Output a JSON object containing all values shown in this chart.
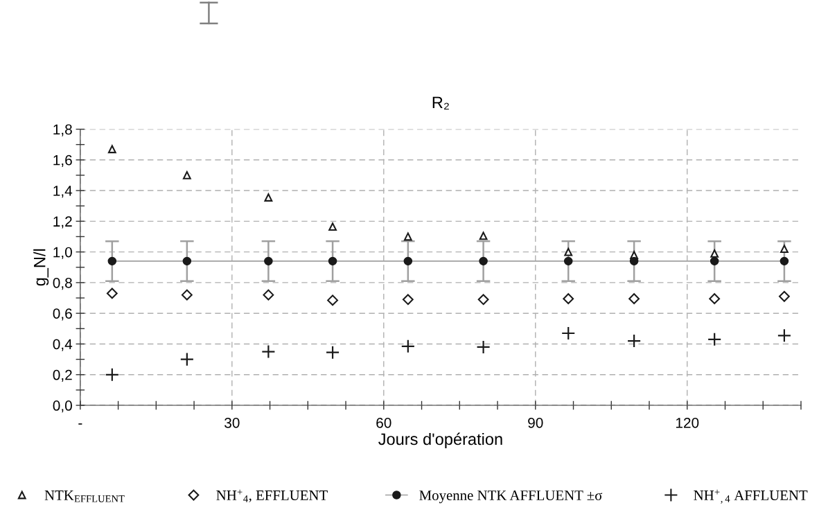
{
  "chart_data": {
    "type": "scatter",
    "title": "R₂",
    "xlabel": "Jours d'opération",
    "ylabel": "g_N/l",
    "x": [
      6.3,
      21.1,
      37.2,
      49.9,
      64.8,
      79.7,
      96.5,
      109.5,
      125.4,
      139.2
    ],
    "series": [
      {
        "name": "NTK$_{EFFLUENT}$",
        "marker": "triangle",
        "color": "#1a1a1a",
        "values": [
          1.67,
          1.5,
          1.355,
          1.165,
          1.1,
          1.105,
          1.0,
          0.98,
          0.99,
          1.02
        ]
      },
      {
        "name": "NH$^{+}$$_{4}$, EFFLUENT",
        "marker": "diamond",
        "color": "#1a1a1a",
        "values": [
          0.73,
          0.72,
          0.72,
          0.685,
          0.69,
          0.69,
          0.695,
          0.695,
          0.695,
          0.71
        ]
      },
      {
        "name": "Moyenne NTK AFFLUENT ±σ",
        "type": "line",
        "marker": "circle",
        "color": "#a0a0a0",
        "values": [
          0.94,
          0.94,
          0.94,
          0.94,
          0.94,
          0.94,
          0.94,
          0.94,
          0.94,
          0.94
        ],
        "errors": [
          0.13,
          0.13,
          0.13,
          0.13,
          0.13,
          0.13,
          0.13,
          0.13,
          0.13,
          0.13
        ]
      },
      {
        "name": "NH$^{+}$$_{,4}$ AFFLUENT",
        "marker": "cross",
        "color": "#1a1a1a",
        "values": [
          0.2,
          0.3,
          0.35,
          0.345,
          0.385,
          0.38,
          0.47,
          0.42,
          0.43,
          0.455
        ]
      }
    ],
    "xlim": [
      0,
      142.5
    ],
    "xticks": [
      {
        "value": 0,
        "label": "-"
      },
      {
        "value": 7.5,
        "label": null
      },
      {
        "value": 15,
        "label": null
      },
      {
        "value": 22.5,
        "label": null
      },
      30,
      {
        "value": 37.5,
        "label": null
      },
      {
        "value": 45,
        "label": null
      },
      {
        "value": 52.5,
        "label": null
      },
      60,
      {
        "value": 67.5,
        "label": null
      },
      {
        "value": 75,
        "label": null
      },
      {
        "value": 82.5,
        "label": null
      },
      90,
      {
        "value": 97.5,
        "label": null
      },
      {
        "value": 105,
        "label": null
      },
      {
        "value": 112.5,
        "label": null
      },
      120,
      {
        "value": 127.5,
        "label": null
      },
      {
        "value": 135,
        "label": null
      },
      {
        "value": 142.5,
        "label": null
      }
    ],
    "ylim": [
      0,
      1.8
    ],
    "yticks": [
      {
        "value": 0,
        "label": "0,0"
      },
      {
        "value": 0.1,
        "label": null
      },
      {
        "value": 0.2,
        "label": "0,2"
      },
      {
        "value": 0.3,
        "label": null
      },
      {
        "value": 0.4,
        "label": "0,4"
      },
      {
        "value": 0.5,
        "label": null
      },
      {
        "value": 0.6,
        "label": "0,6"
      },
      {
        "value": 0.7,
        "label": null
      },
      {
        "value": 0.8,
        "label": "0,8"
      },
      {
        "value": 0.9,
        "label": null
      },
      {
        "value": 1.0,
        "label": "1,0"
      },
      {
        "value": 1.1,
        "label": null
      },
      {
        "value": 1.2,
        "label": "1,2"
      },
      {
        "value": 1.3,
        "label": null
      },
      {
        "value": 1.4,
        "label": "1,4"
      },
      {
        "value": 1.5,
        "label": null
      },
      {
        "value": 1.6,
        "label": "1,6"
      },
      {
        "value": 1.7,
        "label": null
      },
      {
        "value": 1.8,
        "label": "1,8"
      }
    ],
    "grid": true,
    "legend": "bottom"
  }
}
